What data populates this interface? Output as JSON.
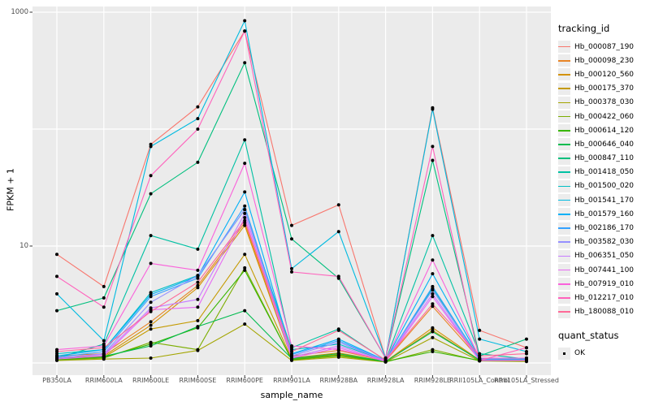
{
  "chart_data": {
    "type": "line",
    "title": "",
    "xlabel": "sample_name",
    "ylabel": "FPKM + 1",
    "y_scale": "log10",
    "ylim": [
      0.79,
      1120
    ],
    "y_ticks": [
      {
        "label": "1000",
        "value": 1000
      },
      {
        "label": "10",
        "value": 10
      }
    ],
    "y_gridlines": [
      1000,
      100,
      10,
      1
    ],
    "grid": true,
    "legend_position": "right",
    "color_legend_title": "tracking_id",
    "categories": [
      "PB350LA",
      "RRIM600LA",
      "RRIM600LE",
      "RRIM600SE",
      "RRIM600PE",
      "RRIM901LA",
      "RRIM928BA",
      "RRIM928LA",
      "RRIM928LE",
      "RRII105LA_Control",
      "RRII105LA_Stressed"
    ],
    "series": [
      {
        "name": "Hb_000087_190",
        "color": "#F8766D",
        "values": [
          8.5,
          4.5,
          74,
          155,
          690,
          15,
          22.5,
          1.1,
          152,
          1.9,
          1.35
        ]
      },
      {
        "name": "Hb_000098_230",
        "color": "#E88526",
        "values": [
          1.15,
          1.2,
          2.25,
          4.6,
          15.8,
          1.15,
          1.28,
          1.04,
          3.05,
          1.08,
          1.06
        ]
      },
      {
        "name": "Hb_000120_560",
        "color": "#D39200",
        "values": [
          1.1,
          1.15,
          2.1,
          4.4,
          15.0,
          1.1,
          1.22,
          1.03,
          2.0,
          1.06,
          1.05
        ]
      },
      {
        "name": "Hb_000175_370",
        "color": "#C49A00",
        "values": [
          1.08,
          1.12,
          1.95,
          2.3,
          8.5,
          1.08,
          1.18,
          1.03,
          1.9,
          1.05,
          1.04
        ]
      },
      {
        "name": "Hb_000378_030",
        "color": "#A3A500",
        "values": [
          1.05,
          1.08,
          1.1,
          1.28,
          2.15,
          1.05,
          1.12,
          1.02,
          1.65,
          1.04,
          1.03
        ]
      },
      {
        "name": "Hb_000422_060",
        "color": "#7CAE00",
        "values": [
          1.06,
          1.1,
          1.5,
          1.3,
          6.5,
          1.06,
          1.15,
          1.02,
          1.3,
          1.04,
          1.04
        ]
      },
      {
        "name": "Hb_000614_120",
        "color": "#39B600",
        "values": [
          1.07,
          1.12,
          1.45,
          2.0,
          6.2,
          1.07,
          1.16,
          1.03,
          1.25,
          1.05,
          1.05
        ]
      },
      {
        "name": "Hb_000646_040",
        "color": "#00BB4E",
        "values": [
          1.09,
          1.14,
          1.4,
          2.05,
          2.8,
          1.09,
          1.2,
          1.03,
          1.85,
          1.06,
          1.07
        ]
      },
      {
        "name": "Hb_000847_110",
        "color": "#00BF7D",
        "values": [
          2.8,
          3.6,
          28,
          52,
          370,
          11.5,
          5.3,
          1.1,
          54,
          1.15,
          1.6
        ]
      },
      {
        "name": "Hb_001418_050",
        "color": "#00C1A3",
        "values": [
          1.1,
          1.45,
          12.3,
          9.4,
          81,
          1.35,
          1.95,
          1.05,
          12.3,
          1.2,
          1.08
        ]
      },
      {
        "name": "Hb_001500_020",
        "color": "#00BFC4",
        "values": [
          1.2,
          1.3,
          4.0,
          5.6,
          20.5,
          1.3,
          1.45,
          1.05,
          4.35,
          1.1,
          1.1
        ]
      },
      {
        "name": "Hb_001541_170",
        "color": "#00BAE0",
        "values": [
          3.9,
          1.55,
          71,
          123,
          845,
          6.4,
          13.3,
          1.1,
          148,
          1.6,
          1.25
        ]
      },
      {
        "name": "Hb_001579_160",
        "color": "#00B0F6",
        "values": [
          1.15,
          1.3,
          3.85,
          5.5,
          29,
          1.2,
          1.6,
          1.05,
          5.8,
          1.1,
          1.1
        ]
      },
      {
        "name": "Hb_002186_170",
        "color": "#35A2FF",
        "values": [
          1.12,
          1.25,
          3.7,
          5.3,
          22,
          1.18,
          1.55,
          1.04,
          4.5,
          1.08,
          1.08
        ]
      },
      {
        "name": "Hb_003582_030",
        "color": "#9590FF",
        "values": [
          1.1,
          1.2,
          3.3,
          5.6,
          20.5,
          1.15,
          1.5,
          1.05,
          4.2,
          1.06,
          1.06
        ]
      },
      {
        "name": "Hb_006351_050",
        "color": "#C77CFF",
        "values": [
          1.1,
          1.18,
          2.95,
          3.5,
          19,
          1.12,
          1.4,
          1.04,
          3.9,
          1.05,
          1.05
        ]
      },
      {
        "name": "Hb_007441_100",
        "color": "#E76BF3",
        "values": [
          1.08,
          1.15,
          2.85,
          3.0,
          17.5,
          1.1,
          1.35,
          1.03,
          3.7,
          1.05,
          1.05
        ]
      },
      {
        "name": "Hb_007919_010",
        "color": "#FA62DB",
        "values": [
          1.3,
          1.4,
          7.1,
          6.2,
          51,
          1.4,
          1.3,
          1.05,
          7.6,
          1.1,
          1.1
        ]
      },
      {
        "name": "Hb_012217_010",
        "color": "#FF62BC",
        "values": [
          5.5,
          3.0,
          40,
          100,
          690,
          6.0,
          5.5,
          1.1,
          71,
          1.05,
          1.35
        ]
      },
      {
        "name": "Hb_180088_010",
        "color": "#FF6A98",
        "values": [
          1.25,
          1.35,
          2.75,
          4.9,
          16.5,
          1.25,
          1.9,
          1.06,
          3.2,
          1.15,
          1.2
        ]
      }
    ],
    "points": {
      "color": "#000000",
      "legend_title": "quant_status",
      "legend_items": [
        "OK"
      ]
    }
  },
  "style": {
    "panel_bg": "#EBEBEB",
    "grid_color": "#FFFFFF",
    "tick_color": "#333333",
    "tick_label_color": "#4D4D4D",
    "legend_key_bg": "#ECECEC",
    "background": "#FFFFFF"
  }
}
